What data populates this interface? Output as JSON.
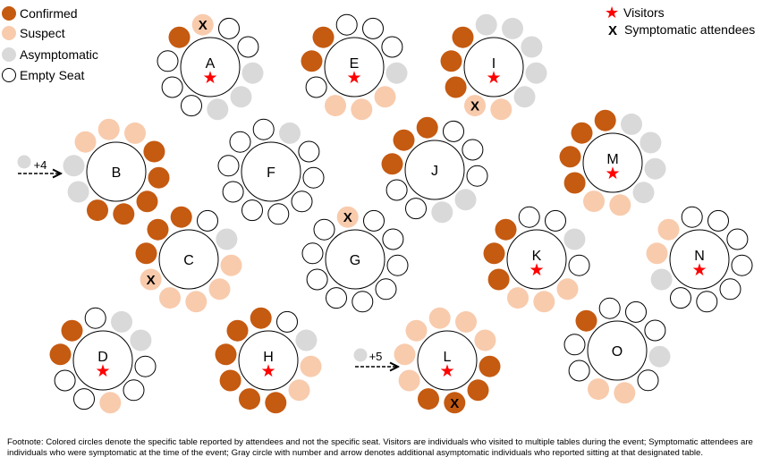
{
  "colors": {
    "confirmed": "#c55a11",
    "suspect": "#f8cbad",
    "asymptomatic": "#d9d9d9",
    "empty": "#ffffff",
    "visitor_star": "#ff0000"
  },
  "legend": {
    "confirmed": "Confirmed",
    "suspect": "Suspect",
    "asymptomatic": "Asymptomatic",
    "empty": "Empty Seat",
    "visitors": "Visitors",
    "symptomatic": "Symptomatic attendees",
    "symptomatic_mark": "X"
  },
  "tables": [
    {
      "label": "A",
      "visitor": true,
      "seats": [
        "sx",
        "e",
        "e",
        "a",
        "a",
        "a",
        "e",
        "e",
        "e",
        "c"
      ]
    },
    {
      "label": "B",
      "visitor": false,
      "seats": [
        "s",
        "s",
        "c",
        "c",
        "c",
        "c",
        "c",
        "a",
        "a",
        "s"
      ]
    },
    {
      "label": "C",
      "visitor": false,
      "seats": [
        "c",
        "e",
        "a",
        "s",
        "s",
        "s",
        "s",
        "sx",
        "c",
        "c"
      ]
    },
    {
      "label": "D",
      "visitor": true,
      "seats": [
        "e",
        "a",
        "a",
        "e",
        "e",
        "s",
        "e",
        "e",
        "c",
        "c"
      ]
    },
    {
      "label": "E",
      "visitor": true,
      "seats": [
        "e",
        "e",
        "e",
        "a",
        "s",
        "s",
        "s",
        "e",
        "c",
        "c"
      ]
    },
    {
      "label": "F",
      "visitor": false,
      "seats": [
        "e",
        "a",
        "e",
        "e",
        "e",
        "e",
        "e",
        "e",
        "e",
        "e"
      ]
    },
    {
      "label": "G",
      "visitor": false,
      "seats": [
        "sx",
        "e",
        "e",
        "e",
        "e",
        "e",
        "e",
        "e",
        "e",
        "e"
      ]
    },
    {
      "label": "H",
      "visitor": true,
      "seats": [
        "c",
        "e",
        "a",
        "s",
        "s",
        "c",
        "c",
        "c",
        "c",
        "c"
      ]
    },
    {
      "label": "I",
      "visitor": true,
      "seats": [
        "a",
        "a",
        "a",
        "a",
        "a",
        "s",
        "sx",
        "c",
        "c",
        "c"
      ]
    },
    {
      "label": "J",
      "visitor": false,
      "seats": [
        "c",
        "e",
        "e",
        "e",
        "a",
        "a",
        "e",
        "e",
        "c",
        "c"
      ]
    },
    {
      "label": "K",
      "visitor": true,
      "seats": [
        "e",
        "e",
        "a",
        "e",
        "s",
        "s",
        "s",
        "c",
        "c",
        "c"
      ]
    },
    {
      "label": "L",
      "visitor": true,
      "seats": [
        "s",
        "s",
        "s",
        "c",
        "c",
        "cx",
        "c",
        "s",
        "s",
        "s"
      ]
    },
    {
      "label": "M",
      "visitor": true,
      "seats": [
        "c",
        "a",
        "a",
        "a",
        "a",
        "s",
        "s",
        "c",
        "c",
        "c"
      ]
    },
    {
      "label": "N",
      "visitor": true,
      "seats": [
        "e",
        "e",
        "e",
        "e",
        "e",
        "e",
        "e",
        "a",
        "s",
        "s"
      ]
    },
    {
      "label": "O",
      "visitor": false,
      "seats": [
        "e",
        "e",
        "e",
        "a",
        "e",
        "s",
        "s",
        "e",
        "e",
        "c"
      ]
    }
  ],
  "extra_asymptomatic": [
    {
      "table": "B",
      "label": "+4"
    },
    {
      "table": "L",
      "label": "+5"
    }
  ],
  "footnote": "Footnote: Colored circles  denote the specific table reported by attendees and not the specific seat. Visitors are individuals who visited to multiple tables during the event; Symptomatic attendees are individuals who were symptomatic at the time  of the event; Gray circle  with number and arrow denotes additional asymptomatic individuals who reported sitting at that designated table."
}
